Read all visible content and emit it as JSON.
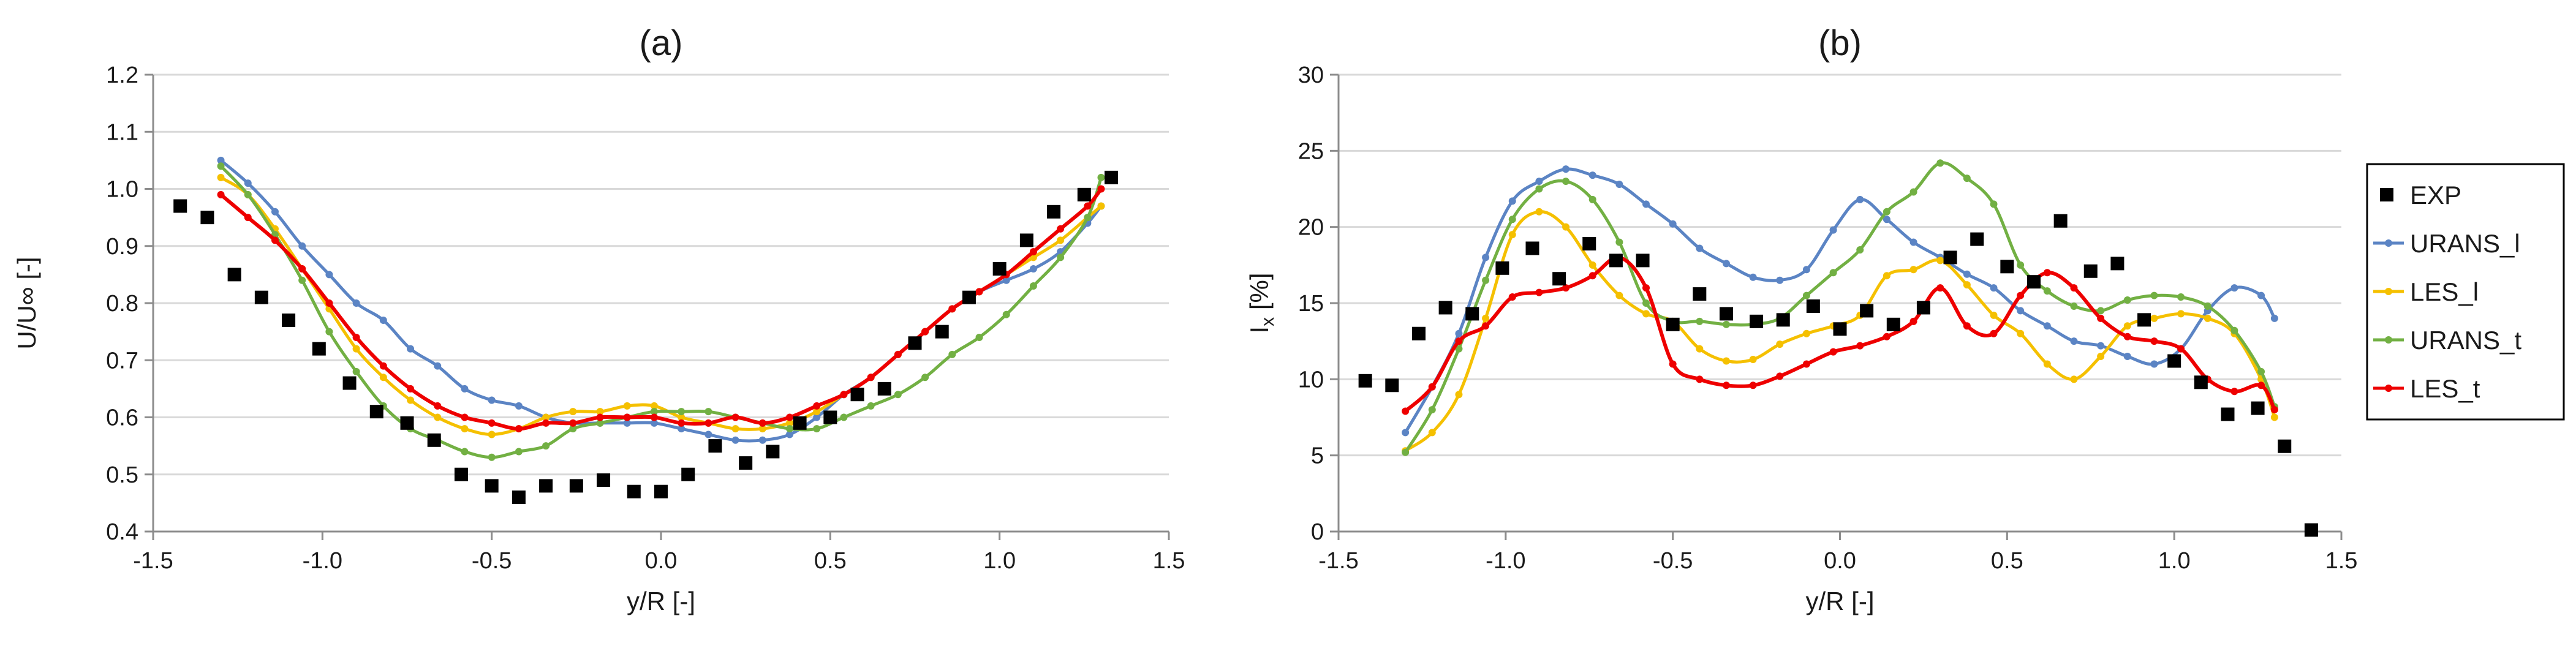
{
  "colors": {
    "EXP": "#000000",
    "URANS_l": "#5b84c4",
    "LES_l": "#f5c000",
    "URANS_t": "#72b043",
    "LES_t": "#ee0000",
    "axis": "#8c8c8c",
    "grid": "#d9d9d9"
  },
  "legend": {
    "items": [
      "EXP",
      "URANS_l",
      "LES_l",
      "URANS_t",
      "LES_t"
    ]
  },
  "chart_data": [
    {
      "type": "scatter",
      "title": "(a)",
      "xlabel": "y/R [-]",
      "ylabel": "U/U∞ [-]",
      "xlim": [
        -1.5,
        1.5
      ],
      "ylim": [
        0.4,
        1.2
      ],
      "xticks": [
        -1.5,
        -1.0,
        -0.5,
        0.0,
        0.5,
        1.0,
        1.5
      ],
      "xtick_labels": [
        "-1.5",
        "-1.0",
        "-0.5",
        "0.0",
        "0.5",
        "1.0",
        "1.5"
      ],
      "yticks": [
        0.4,
        0.5,
        0.6,
        0.7,
        0.8,
        0.9,
        1.0,
        1.1,
        1.2
      ],
      "ytick_labels": [
        "0.4",
        "0.5",
        "0.6",
        "0.7",
        "0.8",
        "0.9",
        "1.0",
        "1.1",
        "1.2"
      ],
      "grid": "horizontal",
      "series": [
        {
          "name": "EXP",
          "style": "markers",
          "x": [
            -1.42,
            -1.34,
            -1.26,
            -1.18,
            -1.1,
            -1.01,
            -0.92,
            -0.84,
            -0.75,
            -0.67,
            -0.59,
            -0.5,
            -0.42,
            -0.34,
            -0.25,
            -0.17,
            -0.08,
            0.0,
            0.08,
            0.16,
            0.25,
            0.33,
            0.41,
            0.5,
            0.58,
            0.66,
            0.75,
            0.83,
            0.91,
            1.0,
            1.08,
            1.16,
            1.25,
            1.33
          ],
          "y": [
            0.97,
            0.95,
            0.85,
            0.81,
            0.77,
            0.72,
            0.66,
            0.61,
            0.59,
            0.56,
            0.5,
            0.48,
            0.46,
            0.48,
            0.48,
            0.49,
            0.47,
            0.47,
            0.5,
            0.55,
            0.52,
            0.54,
            0.59,
            0.6,
            0.64,
            0.65,
            0.73,
            0.75,
            0.81,
            0.86,
            0.91,
            0.96,
            0.99,
            1.02
          ]
        },
        {
          "name": "URANS_l",
          "style": "line",
          "x": [
            -1.3,
            -1.22,
            -1.14,
            -1.06,
            -0.98,
            -0.9,
            -0.82,
            -0.74,
            -0.66,
            -0.58,
            -0.5,
            -0.42,
            -0.34,
            -0.26,
            -0.18,
            -0.1,
            -0.02,
            0.06,
            0.14,
            0.22,
            0.3,
            0.38,
            0.46,
            0.54,
            0.62,
            0.7,
            0.78,
            0.86,
            0.94,
            1.02,
            1.1,
            1.18,
            1.26,
            1.3
          ],
          "y": [
            1.05,
            1.01,
            0.96,
            0.9,
            0.85,
            0.8,
            0.77,
            0.72,
            0.69,
            0.65,
            0.63,
            0.62,
            0.6,
            0.59,
            0.59,
            0.59,
            0.59,
            0.58,
            0.57,
            0.56,
            0.56,
            0.57,
            0.6,
            0.64,
            0.67,
            0.71,
            0.75,
            0.79,
            0.82,
            0.84,
            0.86,
            0.89,
            0.94,
            0.97
          ]
        },
        {
          "name": "LES_l",
          "style": "line",
          "x": [
            -1.3,
            -1.22,
            -1.14,
            -1.06,
            -0.98,
            -0.9,
            -0.82,
            -0.74,
            -0.66,
            -0.58,
            -0.5,
            -0.42,
            -0.34,
            -0.26,
            -0.18,
            -0.1,
            -0.02,
            0.06,
            0.14,
            0.22,
            0.3,
            0.38,
            0.46,
            0.54,
            0.62,
            0.7,
            0.78,
            0.86,
            0.94,
            1.02,
            1.1,
            1.18,
            1.26,
            1.3
          ],
          "y": [
            1.02,
            0.99,
            0.93,
            0.86,
            0.79,
            0.72,
            0.67,
            0.63,
            0.6,
            0.58,
            0.57,
            0.58,
            0.6,
            0.61,
            0.61,
            0.62,
            0.62,
            0.6,
            0.59,
            0.58,
            0.58,
            0.59,
            0.61,
            0.64,
            0.67,
            0.71,
            0.75,
            0.79,
            0.82,
            0.85,
            0.88,
            0.91,
            0.95,
            0.97
          ]
        },
        {
          "name": "URANS_t",
          "style": "line",
          "x": [
            -1.3,
            -1.22,
            -1.14,
            -1.06,
            -0.98,
            -0.9,
            -0.82,
            -0.74,
            -0.66,
            -0.58,
            -0.5,
            -0.42,
            -0.34,
            -0.26,
            -0.18,
            -0.1,
            -0.02,
            0.06,
            0.14,
            0.22,
            0.3,
            0.38,
            0.46,
            0.54,
            0.62,
            0.7,
            0.78,
            0.86,
            0.94,
            1.02,
            1.1,
            1.18,
            1.26,
            1.3
          ],
          "y": [
            1.04,
            0.99,
            0.92,
            0.84,
            0.75,
            0.68,
            0.62,
            0.58,
            0.56,
            0.54,
            0.53,
            0.54,
            0.55,
            0.58,
            0.59,
            0.6,
            0.61,
            0.61,
            0.61,
            0.6,
            0.59,
            0.58,
            0.58,
            0.6,
            0.62,
            0.64,
            0.67,
            0.71,
            0.74,
            0.78,
            0.83,
            0.88,
            0.95,
            1.02
          ]
        },
        {
          "name": "LES_t",
          "style": "line",
          "x": [
            -1.3,
            -1.22,
            -1.14,
            -1.06,
            -0.98,
            -0.9,
            -0.82,
            -0.74,
            -0.66,
            -0.58,
            -0.5,
            -0.42,
            -0.34,
            -0.26,
            -0.18,
            -0.1,
            -0.02,
            0.06,
            0.14,
            0.22,
            0.3,
            0.38,
            0.46,
            0.54,
            0.62,
            0.7,
            0.78,
            0.86,
            0.94,
            1.02,
            1.1,
            1.18,
            1.26,
            1.3
          ],
          "y": [
            0.99,
            0.95,
            0.91,
            0.86,
            0.8,
            0.74,
            0.69,
            0.65,
            0.62,
            0.6,
            0.59,
            0.58,
            0.59,
            0.59,
            0.6,
            0.6,
            0.6,
            0.59,
            0.59,
            0.6,
            0.59,
            0.6,
            0.62,
            0.64,
            0.67,
            0.71,
            0.75,
            0.79,
            0.82,
            0.85,
            0.89,
            0.93,
            0.97,
            1.0
          ]
        }
      ]
    },
    {
      "type": "scatter",
      "title": "(b)",
      "xlabel": "y/R [-]",
      "ylabel": "I",
      "ylabel_sub": "x",
      "ylabel_unit": " [%]",
      "xlim": [
        -1.5,
        1.5
      ],
      "ylim": [
        0,
        30
      ],
      "xticks": [
        -1.5,
        -1.0,
        -0.5,
        0.0,
        0.5,
        1.0,
        1.5
      ],
      "xtick_labels": [
        "-1.5",
        "-1.0",
        "-0.5",
        "0.0",
        "0.5",
        "1.0",
        "1.5"
      ],
      "yticks": [
        0,
        5,
        10,
        15,
        20,
        25,
        30
      ],
      "ytick_labels": [
        "0",
        "5",
        "10",
        "15",
        "20",
        "25",
        "30"
      ],
      "grid": "horizontal",
      "legend_position": "right",
      "series": [
        {
          "name": "EXP",
          "style": "markers",
          "x": [
            -1.42,
            -1.34,
            -1.26,
            -1.18,
            -1.1,
            -1.01,
            -0.92,
            -0.84,
            -0.75,
            -0.67,
            -0.59,
            -0.5,
            -0.42,
            -0.34,
            -0.25,
            -0.17,
            -0.08,
            0.0,
            0.08,
            0.16,
            0.25,
            0.33,
            0.41,
            0.5,
            0.58,
            0.66,
            0.75,
            0.83,
            0.91,
            1.0,
            1.08,
            1.16,
            1.25,
            1.33,
            1.41
          ],
          "y": [
            9.9,
            9.6,
            13.0,
            14.7,
            14.3,
            17.3,
            18.6,
            16.6,
            18.9,
            17.8,
            17.8,
            13.6,
            15.6,
            14.3,
            13.8,
            13.9,
            14.8,
            13.3,
            14.5,
            13.6,
            14.7,
            18.0,
            19.2,
            17.4,
            16.4,
            20.4,
            17.1,
            17.6,
            13.9,
            11.2,
            9.8,
            7.7,
            8.1,
            5.6,
            0.1
          ]
        },
        {
          "name": "URANS_l",
          "style": "line",
          "x": [
            -1.3,
            -1.22,
            -1.14,
            -1.06,
            -0.98,
            -0.9,
            -0.82,
            -0.74,
            -0.66,
            -0.58,
            -0.5,
            -0.42,
            -0.34,
            -0.26,
            -0.18,
            -0.1,
            -0.02,
            0.06,
            0.14,
            0.22,
            0.3,
            0.38,
            0.46,
            0.54,
            0.62,
            0.7,
            0.78,
            0.86,
            0.94,
            1.02,
            1.1,
            1.18,
            1.26,
            1.3
          ],
          "y": [
            6.5,
            9.5,
            13.0,
            18.0,
            21.7,
            23.0,
            23.8,
            23.4,
            22.8,
            21.5,
            20.2,
            18.6,
            17.6,
            16.7,
            16.5,
            17.2,
            19.8,
            21.8,
            20.5,
            19.0,
            18.0,
            16.9,
            16.0,
            14.5,
            13.5,
            12.5,
            12.2,
            11.5,
            11.0,
            12.0,
            14.5,
            16.0,
            15.5,
            14.0
          ]
        },
        {
          "name": "LES_l",
          "style": "line",
          "x": [
            -1.3,
            -1.22,
            -1.14,
            -1.06,
            -0.98,
            -0.9,
            -0.82,
            -0.74,
            -0.66,
            -0.58,
            -0.5,
            -0.42,
            -0.34,
            -0.26,
            -0.18,
            -0.1,
            -0.02,
            0.06,
            0.14,
            0.22,
            0.3,
            0.38,
            0.46,
            0.54,
            0.62,
            0.7,
            0.78,
            0.86,
            0.94,
            1.02,
            1.1,
            1.18,
            1.26,
            1.3
          ],
          "y": [
            5.3,
            6.5,
            9.0,
            14.0,
            19.5,
            21.0,
            20.0,
            17.5,
            15.5,
            14.3,
            13.8,
            12.0,
            11.2,
            11.3,
            12.3,
            13.0,
            13.5,
            14.2,
            16.8,
            17.2,
            17.8,
            16.2,
            14.2,
            13.0,
            11.0,
            10.0,
            11.5,
            13.5,
            14.0,
            14.3,
            14.0,
            13.0,
            10.0,
            7.5
          ]
        },
        {
          "name": "URANS_t",
          "style": "line",
          "x": [
            -1.3,
            -1.22,
            -1.14,
            -1.06,
            -0.98,
            -0.9,
            -0.82,
            -0.74,
            -0.66,
            -0.58,
            -0.5,
            -0.42,
            -0.34,
            -0.26,
            -0.18,
            -0.1,
            -0.02,
            0.06,
            0.14,
            0.22,
            0.3,
            0.38,
            0.46,
            0.54,
            0.62,
            0.7,
            0.78,
            0.86,
            0.94,
            1.02,
            1.1,
            1.18,
            1.26,
            1.3
          ],
          "y": [
            5.2,
            8.0,
            12.0,
            16.5,
            20.5,
            22.5,
            23.0,
            21.8,
            19.0,
            15.0,
            13.8,
            13.8,
            13.6,
            13.6,
            14.0,
            15.5,
            17.0,
            18.5,
            21.0,
            22.3,
            24.2,
            23.2,
            21.5,
            17.5,
            15.8,
            14.8,
            14.5,
            15.2,
            15.5,
            15.4,
            14.8,
            13.2,
            10.5,
            8.2
          ]
        },
        {
          "name": "LES_t",
          "style": "line",
          "x": [
            -1.3,
            -1.22,
            -1.14,
            -1.06,
            -0.98,
            -0.9,
            -0.82,
            -0.74,
            -0.66,
            -0.58,
            -0.5,
            -0.42,
            -0.34,
            -0.26,
            -0.18,
            -0.1,
            -0.02,
            0.06,
            0.14,
            0.22,
            0.3,
            0.38,
            0.46,
            0.54,
            0.62,
            0.7,
            0.78,
            0.86,
            0.94,
            1.02,
            1.1,
            1.18,
            1.26,
            1.3
          ],
          "y": [
            7.9,
            9.5,
            12.5,
            13.5,
            15.4,
            15.7,
            16.0,
            16.8,
            18.0,
            16.0,
            11.0,
            10.0,
            9.6,
            9.6,
            10.2,
            11.0,
            11.8,
            12.2,
            12.8,
            13.8,
            16.0,
            13.5,
            13.0,
            15.5,
            17.0,
            16.0,
            14.0,
            12.8,
            12.5,
            12.0,
            10.0,
            9.2,
            9.6,
            8.0
          ]
        }
      ]
    }
  ]
}
